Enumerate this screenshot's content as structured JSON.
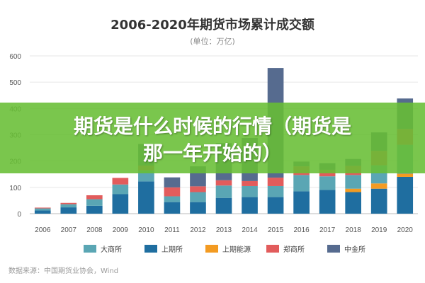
{
  "chart_data": {
    "type": "bar",
    "stacked": true,
    "title": "2006-2020年期货市场累计成交额",
    "subtitle": "(单位：万亿)",
    "categories": [
      "2006",
      "2007",
      "2008",
      "2009",
      "2010",
      "2011",
      "2012",
      "2013",
      "2014",
      "2015",
      "2016",
      "2017",
      "2018",
      "2019",
      "2020"
    ],
    "ylim": [
      0,
      600
    ],
    "yticks": [
      0,
      100,
      200,
      300,
      400,
      500,
      600
    ],
    "grid": true,
    "legend_position": "bottom",
    "series": [
      {
        "name": "上期所",
        "color": "#1f6ea0",
        "values": [
          12,
          24,
          30,
          74,
          123,
          44,
          44,
          60,
          63,
          63,
          85,
          90,
          82,
          95,
          140
        ]
      },
      {
        "name": "上期能源",
        "color": "#f39b22",
        "values": [
          0,
          0,
          0,
          0,
          0,
          0,
          0,
          0,
          0,
          0,
          0,
          0,
          13,
          20,
          12
        ]
      },
      {
        "name": "大商所",
        "color": "#5aa6b4",
        "values": [
          8,
          12,
          25,
          37,
          42,
          22,
          38,
          47,
          42,
          42,
          62,
          52,
          52,
          69,
          110
        ]
      },
      {
        "name": "郑商所",
        "color": "#e25c5c",
        "values": [
          3,
          5,
          15,
          25,
          18,
          34,
          22,
          20,
          19,
          32,
          33,
          25,
          35,
          55,
          60
        ]
      },
      {
        "name": "中金所",
        "color": "#566b8f",
        "values": [
          0,
          0,
          0,
          0,
          82,
          38,
          76,
          141,
          164,
          417,
          18,
          25,
          26,
          70,
          116
        ]
      }
    ],
    "legend_order": [
      "大商所",
      "上期所",
      "上期能源",
      "郑商所",
      "中金所"
    ],
    "source": "数据来源：中国期货业协会，Wind"
  },
  "banner": {
    "line1": "期货是什么时候的行情（期货是",
    "line2": "那一年开始的）"
  }
}
